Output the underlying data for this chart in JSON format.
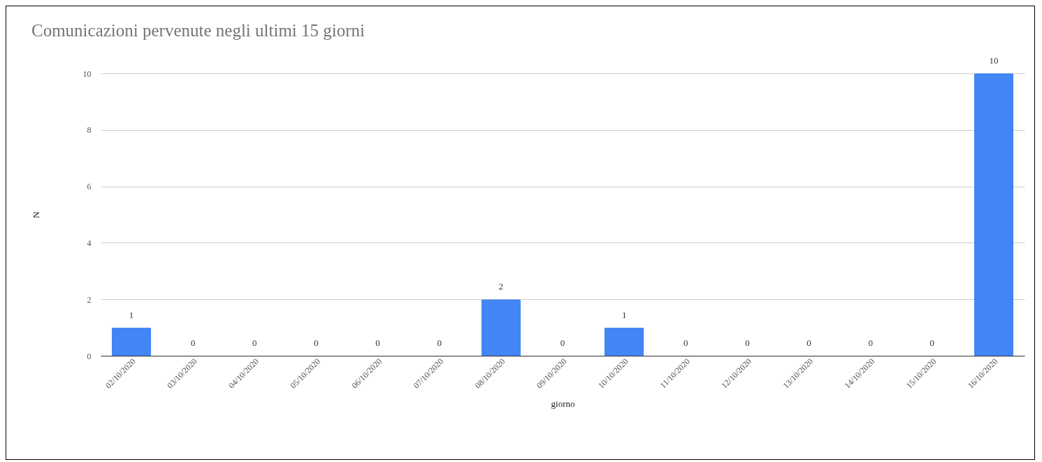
{
  "chart_data": {
    "type": "bar",
    "title": "Comunicazioni pervenute negli ultimi 15 giorni",
    "xlabel": "giorno",
    "ylabel": "N",
    "categories": [
      "02/10/2020",
      "03/10/2020",
      "04/10/2020",
      "05/10/2020",
      "06/10/2020",
      "07/10/2020",
      "08/10/2020",
      "09/10/2020",
      "10/10/2020",
      "11/10/2020",
      "12/10/2020",
      "13/10/2020",
      "14/10/2020",
      "15/10/2020",
      "16/10/2020"
    ],
    "values": [
      1,
      0,
      0,
      0,
      0,
      0,
      2,
      0,
      1,
      0,
      0,
      0,
      0,
      0,
      10
    ],
    "color": "#4285f4",
    "ylim": [
      0,
      10
    ],
    "yticks": [
      0,
      2,
      4,
      6,
      8,
      10
    ],
    "grid": "y",
    "data_labels": true
  }
}
